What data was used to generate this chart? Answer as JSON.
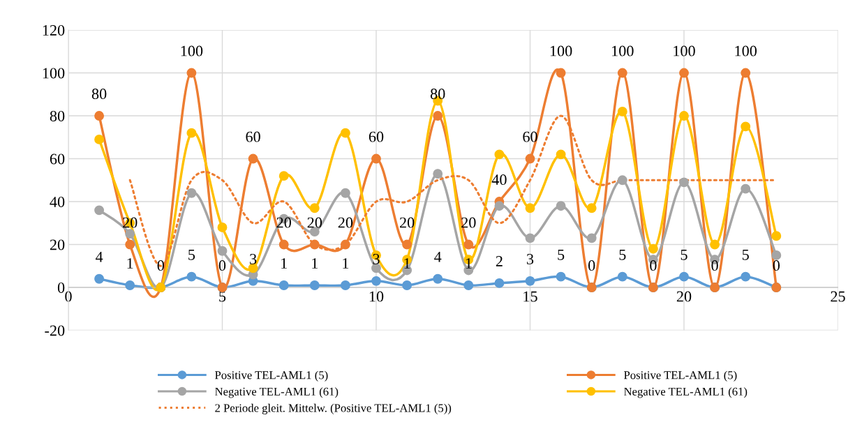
{
  "chart_data": {
    "type": "line",
    "x": [
      1,
      2,
      3,
      4,
      5,
      6,
      7,
      8,
      9,
      10,
      11,
      12,
      13,
      14,
      15,
      16,
      17,
      18,
      19,
      20,
      21,
      22,
      23
    ],
    "series": [
      {
        "name": "Positive TEL-AML1 (5)",
        "color": "#5b9bd5",
        "marker": "circle",
        "data_labels": true,
        "values": [
          4,
          1,
          0,
          5,
          0,
          3,
          1,
          1,
          1,
          3,
          1,
          4,
          1,
          2,
          3,
          5,
          0,
          5,
          0,
          5,
          0,
          5,
          0
        ]
      },
      {
        "name": "Positive TEL-AML1 (5)",
        "color": "#ed7d31",
        "marker": "circle",
        "value_labels": [
          "80",
          "20",
          null,
          "100",
          null,
          "60",
          "20",
          "20",
          "20",
          "60",
          "20",
          "80",
          "20",
          "40",
          "60",
          "100",
          null,
          "100",
          null,
          "100",
          null,
          "100",
          null
        ],
        "values": [
          80,
          20,
          0,
          100,
          0,
          60,
          20,
          20,
          20,
          60,
          20,
          80,
          20,
          40,
          60,
          100,
          0,
          100,
          0,
          100,
          0,
          100,
          0
        ]
      },
      {
        "name": "Negative TEL-AML1 (61)",
        "color": "#a5a5a5",
        "marker": "circle",
        "values": [
          36,
          25,
          0,
          44,
          17,
          6,
          32,
          26,
          44,
          9,
          8,
          53,
          8,
          38,
          23,
          38,
          23,
          50,
          13,
          49,
          13,
          46,
          15
        ]
      },
      {
        "name": "Negative TEL-AML1 (61)",
        "color": "#ffc000",
        "marker": "circle",
        "values": [
          69,
          30,
          0,
          72,
          28,
          9,
          52,
          37,
          72,
          15,
          13,
          87,
          13,
          62,
          37,
          62,
          37,
          82,
          18,
          80,
          20,
          75,
          24
        ]
      },
      {
        "name": "2 Periode gleit. Mittelw. (Positive TEL-AML1 (5))",
        "color": "#ed7d31",
        "marker": "none",
        "line_style": "dotted",
        "x": [
          2,
          3,
          4,
          5,
          6,
          7,
          8,
          9,
          10,
          11,
          12,
          13,
          14,
          15,
          16,
          17,
          18,
          19,
          20,
          21,
          22,
          23
        ],
        "values": [
          50,
          10,
          50,
          50,
          30,
          40,
          20,
          20,
          40,
          40,
          50,
          50,
          30,
          50,
          80,
          50,
          50,
          50,
          50,
          50,
          50,
          50
        ]
      }
    ],
    "xlim": [
      0,
      25
    ],
    "xticks": [
      0,
      5,
      10,
      15,
      20,
      25
    ],
    "ylim": [
      -20,
      120
    ],
    "yticks": [
      -20,
      0,
      20,
      40,
      60,
      80,
      100,
      120
    ],
    "grid": true,
    "legend": "bottom"
  }
}
